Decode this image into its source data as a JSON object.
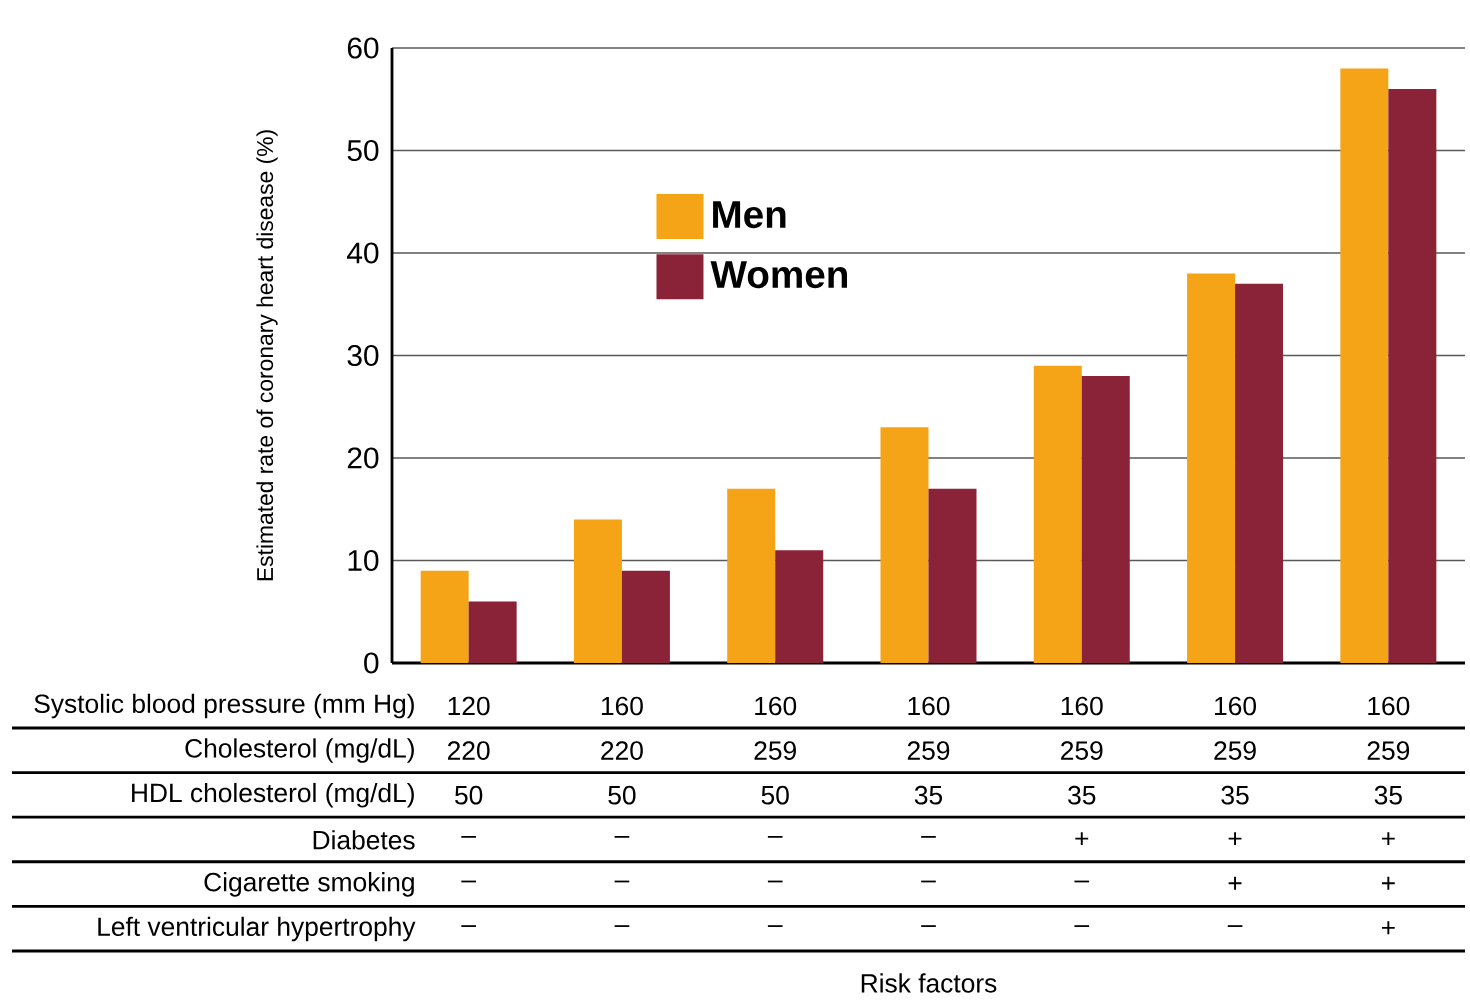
{
  "chart_data": {
    "type": "bar",
    "ylabel": "Estimated rate of coronary heart disease (%)",
    "categories": [
      null,
      null,
      null,
      null,
      null,
      null,
      null
    ],
    "series": [
      {
        "name": "Men",
        "color": "#f4a416",
        "values": [
          9,
          14,
          17,
          23,
          29,
          38,
          58
        ]
      },
      {
        "name": "Women",
        "color": "#8b2338",
        "values": [
          6,
          9,
          11,
          17,
          28,
          37,
          56
        ]
      }
    ],
    "ylim": [
      0,
      60
    ],
    "yticks": [
      0,
      10,
      20,
      30,
      40,
      50,
      60
    ],
    "grid": "y",
    "legend": "top left",
    "annotations": [
      "Systolic blood pressure (mm Hg)",
      "Cholesterol (mg/dL)",
      "HDL cholesterol (mg/dL)",
      "Diabetes",
      "Cigarette smoking",
      "Left ventricular hypertrophy",
      "120",
      "160",
      "160",
      "160",
      "160",
      "160",
      "160",
      "220",
      "220",
      "259",
      "259",
      "259",
      "259",
      "259",
      "50",
      "50",
      "50",
      "35",
      "35",
      "35",
      "35",
      "–",
      "–",
      "–",
      "–",
      "+",
      "+",
      "+",
      "–",
      "–",
      "–",
      "–",
      "–",
      "+",
      "+",
      "–",
      "–",
      "–",
      "–",
      "–",
      "–",
      "+",
      "Risk factors"
    ]
  }
}
